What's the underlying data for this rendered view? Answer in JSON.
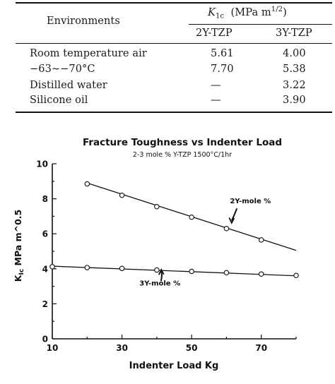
{
  "table": {
    "header": {
      "environments": "Environments",
      "k_symbol": "K",
      "k_subscript": "1c",
      "k_unit_prefix": "(MPa m",
      "k_unit_exp": "1/2",
      "k_unit_suffix": ")",
      "col_2y": "2Y-TZP",
      "col_3y": "3Y-TZP"
    },
    "rows": [
      {
        "label": "Room temperature air",
        "v2y": "5.61",
        "v3y": "4.00"
      },
      {
        "label": "−63∼−70°C",
        "v2y": "7.70",
        "v3y": "5.38"
      },
      {
        "label": "Distilled water",
        "v2y": "—",
        "v3y": "3.22"
      },
      {
        "label": "Silicone oil",
        "v2y": "—",
        "v3y": "3.90"
      }
    ]
  },
  "chart_data": {
    "type": "line",
    "title": "Fracture Toughness vs Indenter Load",
    "subtitle": "2-3 mole % Y-TZP 1500°C/1hr",
    "xlabel": "Indenter Load Kg",
    "ylabel_main": "K",
    "ylabel_sub": "Ic",
    "ylabel_rest": " MPa m^0.5",
    "xlim": [
      10,
      80
    ],
    "ylim": [
      0,
      10
    ],
    "x_ticks": [
      10,
      30,
      50,
      70
    ],
    "y_ticks": [
      0,
      2,
      4,
      6,
      8,
      10
    ],
    "grid": false,
    "series": [
      {
        "name": "2Y-mole %",
        "points": [
          {
            "x": 20,
            "y": 8.85
          },
          {
            "x": 30,
            "y": 8.2
          },
          {
            "x": 40,
            "y": 7.55
          },
          {
            "x": 50,
            "y": 6.95
          },
          {
            "x": 60,
            "y": 6.3
          },
          {
            "x": 70,
            "y": 5.65
          }
        ],
        "fit": [
          [
            20,
            8.9
          ],
          [
            80,
            5.05
          ]
        ]
      },
      {
        "name": "3Y-mole %",
        "points": [
          {
            "x": 10,
            "y": 4.12
          },
          {
            "x": 20,
            "y": 4.07
          },
          {
            "x": 30,
            "y": 4.02
          },
          {
            "x": 40,
            "y": 3.93
          },
          {
            "x": 50,
            "y": 3.85
          },
          {
            "x": 60,
            "y": 3.78
          },
          {
            "x": 70,
            "y": 3.7
          },
          {
            "x": 80,
            "y": 3.62
          }
        ],
        "fit": [
          [
            10,
            4.15
          ],
          [
            80,
            3.6
          ]
        ]
      }
    ],
    "annotations": [
      {
        "text": "2Y-mole %",
        "series": 0
      },
      {
        "text": "3Y-mole %",
        "series": 1
      }
    ]
  }
}
